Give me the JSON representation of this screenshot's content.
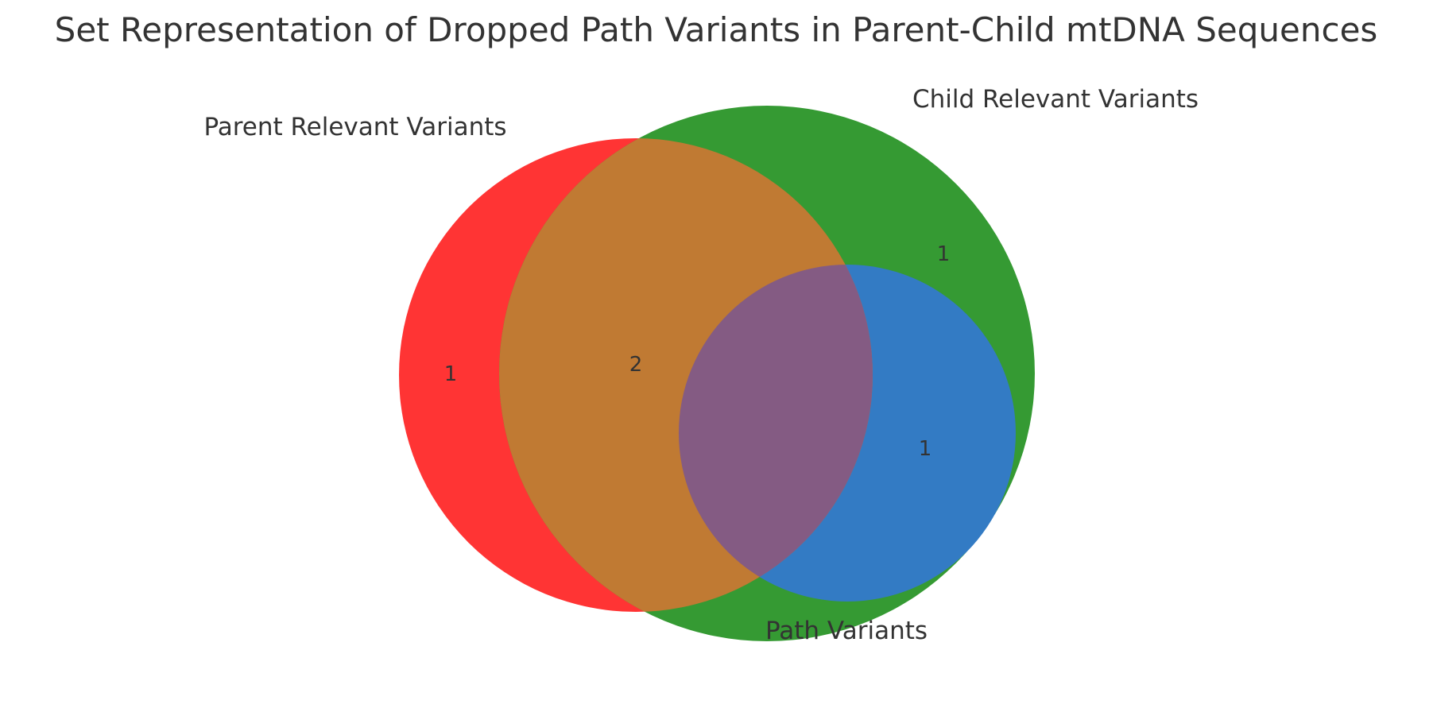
{
  "chart_data": {
    "type": "venn",
    "title": "Set Representation of Dropped Path Variants in Parent-Child mtDNA Sequences",
    "sets": [
      {
        "key": "parent",
        "name": "Parent Relevant Variants",
        "color": "#ff0000"
      },
      {
        "key": "child",
        "name": "Child Relevant Variants",
        "color": "#008000"
      },
      {
        "key": "path",
        "name": "Path Variants",
        "color": "#0000ff"
      }
    ],
    "regions": [
      {
        "key": "parent_only",
        "sets": [
          "parent"
        ],
        "count": "1"
      },
      {
        "key": "parent_child",
        "sets": [
          "parent",
          "child"
        ],
        "count": "2"
      },
      {
        "key": "child_only",
        "sets": [
          "child"
        ],
        "count": "1"
      },
      {
        "key": "child_path",
        "sets": [
          "child",
          "path"
        ],
        "count": "1"
      }
    ]
  }
}
